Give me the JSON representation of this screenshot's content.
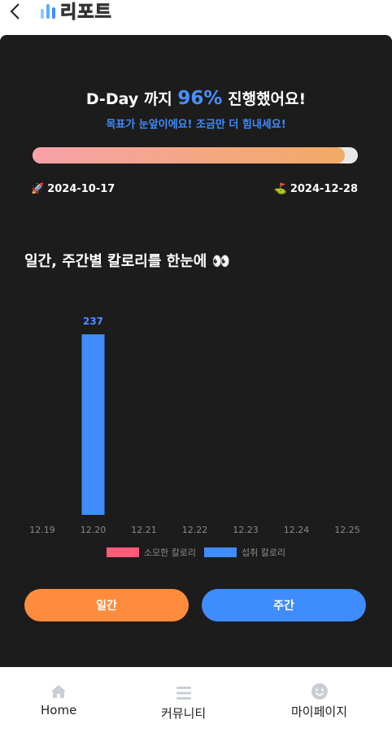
{
  "header": {
    "title": "리포트",
    "back_icon": "chevron-left-icon",
    "chart_icon": "bar-chart-icon"
  },
  "progress": {
    "headline_prefix": "D-Day 까지",
    "percent_text": "96%",
    "headline_suffix": "진행했어요!",
    "subtitle": "목표가 눈앞이에요! 조금만 더 힘내세요!",
    "percent": 96,
    "start_icon": "🚀",
    "start_date": "2024-10-17",
    "end_icon": "⛳",
    "end_date": "2024-12-28"
  },
  "section": {
    "title": "일간, 주간별 칼로리를 한눈에 👀"
  },
  "chart_data": {
    "type": "bar",
    "categories": [
      "12.19",
      "12.20",
      "12.21",
      "12.22",
      "12.23",
      "12.24",
      "12.25"
    ],
    "series": [
      {
        "name": "소모한 칼로리",
        "color": "#ff5a78",
        "values": [
          0,
          0,
          0,
          0,
          0,
          0,
          0
        ]
      },
      {
        "name": "섭취 칼로리",
        "color": "#3f8cff",
        "values": [
          0,
          237,
          0,
          0,
          0,
          0,
          0
        ]
      }
    ],
    "value_labels": [
      "",
      "237",
      "",
      "",
      "",
      "",
      ""
    ],
    "ylim": [
      0,
      237
    ],
    "grid": false,
    "legend": "bottom"
  },
  "buttons": {
    "daily": "일간",
    "weekly": "주간"
  },
  "nav": {
    "home": {
      "label": "Home",
      "icon": "home-icon"
    },
    "community": {
      "label": "커뮤니티",
      "icon": "menu-icon"
    },
    "mypage": {
      "label": "마이페이지",
      "icon": "smiley-icon"
    }
  },
  "colors": {
    "accent_blue": "#3f8cff",
    "accent_orange": "#ff8c3c",
    "card_bg": "#1c1c1c"
  }
}
